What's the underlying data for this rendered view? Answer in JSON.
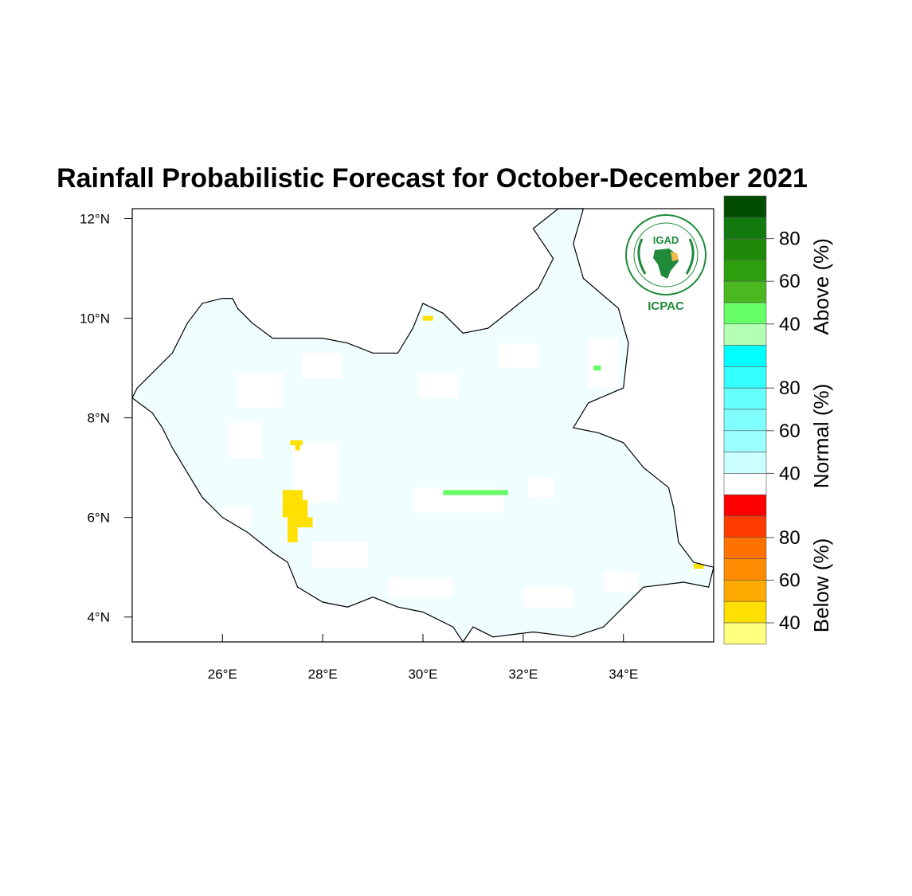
{
  "title": "Rainfall Probabilistic Forecast for October-December 2021",
  "logo": {
    "top_text": "IGAD",
    "bottom_text": "ICPAC",
    "color": "#1e8a3a"
  },
  "colors": {
    "above": [
      "#b3ffb3",
      "#66ff66",
      "#4cb81f",
      "#2e9e0e",
      "#1f8a0a",
      "#137a10",
      "#004d00"
    ],
    "normal": [
      "#ffffff",
      "#ccffff",
      "#99ffff",
      "#80ffff",
      "#66ffff",
      "#33ffff",
      "#00ffff"
    ],
    "below": [
      "#ffff80",
      "#ffe000",
      "#ffaa00",
      "#ff8c00",
      "#ff7200",
      "#ff3c00",
      "#ff0000"
    ],
    "land": "#f0feff"
  },
  "chart_data": {
    "type": "heatmap",
    "title": "Rainfall Probabilistic Forecast for October-December 2021",
    "x_axis": {
      "ticks": [
        26,
        28,
        30,
        32,
        34
      ],
      "labels": [
        "26°E",
        "28°E",
        "30°E",
        "32°E",
        "34°E"
      ],
      "range": [
        24.2,
        35.8
      ]
    },
    "y_axis": {
      "ticks": [
        4,
        6,
        8,
        10,
        12
      ],
      "labels": [
        "4°N",
        "6°N",
        "8°N",
        "10°N",
        "12°N"
      ],
      "range": [
        3.5,
        12.2
      ]
    },
    "colorbar": {
      "placement": "right",
      "groups": [
        {
          "title": "Above (%)",
          "labels": [
            "40",
            "60",
            "80"
          ]
        },
        {
          "title": "Normal (%)",
          "labels": [
            "40",
            "60",
            "80"
          ]
        },
        {
          "title": "Below (%)",
          "labels": [
            "40",
            "60",
            "80"
          ]
        }
      ]
    },
    "boundary": [
      [
        24.2,
        8.4
      ],
      [
        24.3,
        8.6
      ],
      [
        24.6,
        8.9
      ],
      [
        25.0,
        9.3
      ],
      [
        25.3,
        9.9
      ],
      [
        25.6,
        10.3
      ],
      [
        26.0,
        10.4
      ],
      [
        26.2,
        10.4
      ],
      [
        26.3,
        10.2
      ],
      [
        26.6,
        9.9
      ],
      [
        27.0,
        9.6
      ],
      [
        27.5,
        9.6
      ],
      [
        28.0,
        9.6
      ],
      [
        28.5,
        9.5
      ],
      [
        29.0,
        9.3
      ],
      [
        29.5,
        9.3
      ],
      [
        29.8,
        9.8
      ],
      [
        30.0,
        10.3
      ],
      [
        30.4,
        10.1
      ],
      [
        30.8,
        9.7
      ],
      [
        31.3,
        9.8
      ],
      [
        31.8,
        10.2
      ],
      [
        32.3,
        10.6
      ],
      [
        32.6,
        11.2
      ],
      [
        32.2,
        11.8
      ],
      [
        32.7,
        12.2
      ],
      [
        33.2,
        12.2
      ],
      [
        33.0,
        11.5
      ],
      [
        33.2,
        10.8
      ],
      [
        33.9,
        10.2
      ],
      [
        34.1,
        9.5
      ],
      [
        34.0,
        8.6
      ],
      [
        33.3,
        8.3
      ],
      [
        33.0,
        7.8
      ],
      [
        33.5,
        7.7
      ],
      [
        34.0,
        7.5
      ],
      [
        34.4,
        7.0
      ],
      [
        34.9,
        6.6
      ],
      [
        35.0,
        6.2
      ],
      [
        35.1,
        5.5
      ],
      [
        35.4,
        5.1
      ],
      [
        35.8,
        5.0
      ],
      [
        35.7,
        4.6
      ],
      [
        35.2,
        4.7
      ],
      [
        34.4,
        4.6
      ],
      [
        34.0,
        4.2
      ],
      [
        33.6,
        3.8
      ],
      [
        33.0,
        3.6
      ],
      [
        32.2,
        3.7
      ],
      [
        31.4,
        3.6
      ],
      [
        31.0,
        3.8
      ],
      [
        30.8,
        3.5
      ],
      [
        30.6,
        3.8
      ],
      [
        30.0,
        4.1
      ],
      [
        29.5,
        4.2
      ],
      [
        29.0,
        4.4
      ],
      [
        28.5,
        4.2
      ],
      [
        28.0,
        4.3
      ],
      [
        27.5,
        4.6
      ],
      [
        27.3,
        5.1
      ],
      [
        27.0,
        5.3
      ],
      [
        26.5,
        5.7
      ],
      [
        26.0,
        6.0
      ],
      [
        25.6,
        6.4
      ],
      [
        25.3,
        6.9
      ],
      [
        25.0,
        7.4
      ],
      [
        24.8,
        7.8
      ],
      [
        24.6,
        8.1
      ],
      [
        24.2,
        8.4
      ]
    ],
    "anomaly_patches": [
      {
        "category": "below",
        "color_index": 1,
        "cells": [
          [
            27.2,
            6.55,
            27.6,
            6.35
          ],
          [
            27.2,
            6.35,
            27.7,
            6.0
          ],
          [
            27.3,
            6.0,
            27.8,
            5.8
          ],
          [
            27.3,
            5.8,
            27.5,
            5.5
          ]
        ]
      },
      {
        "category": "below",
        "color_index": 1,
        "cells": [
          [
            27.35,
            7.55,
            27.6,
            7.45
          ],
          [
            27.45,
            7.45,
            27.55,
            7.35
          ]
        ]
      },
      {
        "category": "below",
        "color_index": 1,
        "cells": [
          [
            30.0,
            10.05,
            30.2,
            9.95
          ]
        ]
      },
      {
        "category": "below",
        "color_index": 1,
        "cells": [
          [
            35.4,
            5.07,
            35.6,
            4.97
          ]
        ]
      },
      {
        "category": "above",
        "color_index": 1,
        "cells": [
          [
            30.4,
            6.55,
            31.7,
            6.45
          ]
        ]
      },
      {
        "category": "above",
        "color_index": 1,
        "cells": [
          [
            33.4,
            9.05,
            33.55,
            8.95
          ]
        ]
      }
    ],
    "white_patches": [
      [
        26.3,
        8.9,
        27.2,
        8.2
      ],
      [
        27.6,
        9.3,
        28.4,
        8.8
      ],
      [
        29.9,
        8.9,
        30.7,
        8.4
      ],
      [
        31.5,
        9.5,
        32.3,
        9.0
      ],
      [
        33.3,
        9.6,
        33.9,
        8.6
      ],
      [
        26.1,
        7.9,
        26.8,
        7.2
      ],
      [
        27.4,
        7.5,
        28.3,
        6.3
      ],
      [
        29.8,
        6.6,
        31.6,
        6.1
      ],
      [
        32.1,
        6.8,
        32.6,
        6.4
      ],
      [
        27.8,
        5.5,
        28.9,
        5.0
      ],
      [
        29.3,
        4.8,
        30.6,
        4.4
      ],
      [
        32.0,
        4.6,
        33.0,
        4.2
      ],
      [
        33.6,
        4.9,
        34.3,
        4.5
      ],
      [
        26.0,
        6.2,
        26.6,
        5.8
      ]
    ]
  }
}
